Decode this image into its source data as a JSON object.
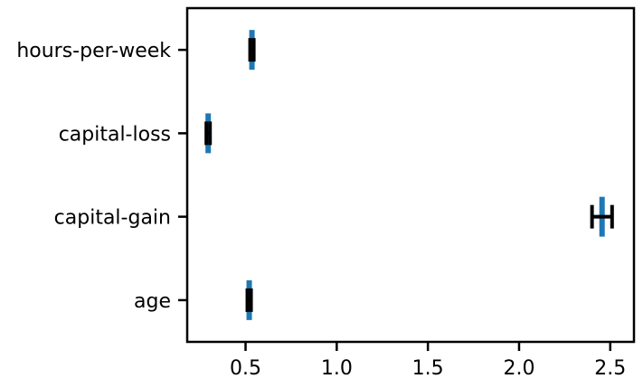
{
  "chart_data": {
    "type": "bar",
    "orientation": "horizontal",
    "categories": [
      "age",
      "capital-gain",
      "capital-loss",
      "hours-per-week"
    ],
    "values": [
      0.52,
      2.455,
      0.295,
      0.535
    ],
    "errors": [
      0.01,
      0.055,
      0.01,
      0.01
    ],
    "title": "",
    "xlabel": "",
    "ylabel": "",
    "xlim": [
      0.18,
      2.63
    ],
    "xticks": [
      "0.5",
      "1.0",
      "1.5",
      "2.0",
      "2.5"
    ],
    "xtick_values": [
      0.5,
      1.0,
      1.5,
      2.0,
      2.5
    ],
    "grid": false,
    "bar_color": "#1f77b4",
    "error_color": "#000000"
  }
}
